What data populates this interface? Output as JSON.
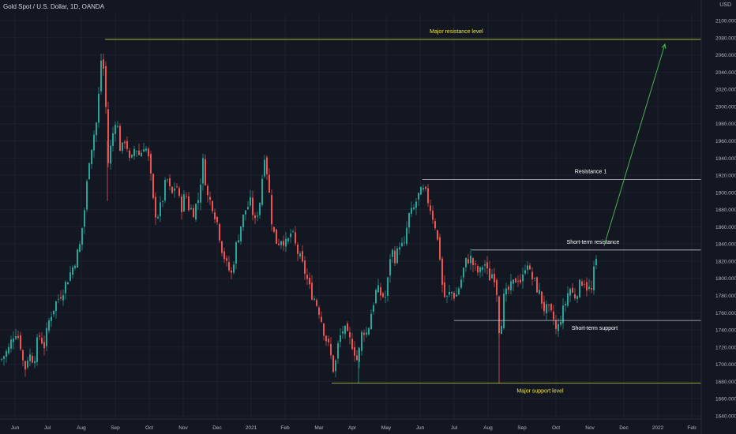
{
  "header": {
    "symbol": "Gold Spot / U.S. Dollar, 1D, OANDA",
    "currency": "USD"
  },
  "colors": {
    "background": "#131722",
    "up": "#26a69a",
    "down": "#ef5350",
    "major_level": "#c8e63c",
    "minor_level": "#d1d4dc",
    "arrow": "#4caf50",
    "major_text": "#f0e442",
    "minor_text": "#ffffff"
  },
  "chart_data": {
    "type": "candlestick",
    "title": "Gold Spot / U.S. Dollar, 1D, OANDA",
    "ylabel": "USD",
    "ylim": [
      1630,
      2120
    ],
    "y_ticks": [
      1640,
      1660,
      1680,
      1700,
      1720,
      1740,
      1760,
      1780,
      1800,
      1820,
      1840,
      1860,
      1880,
      1900,
      1920,
      1940,
      1960,
      1980,
      2000,
      2020,
      2040,
      2060,
      2080,
      2100
    ],
    "x_ticks": [
      "Jun",
      "Jul",
      "Aug",
      "Sep",
      "Oct",
      "Nov",
      "Dec",
      "2021",
      "Feb",
      "Mar",
      "Apr",
      "May",
      "Jun",
      "Jul",
      "Aug",
      "Sep",
      "Oct",
      "Nov",
      "Dec",
      "2022",
      "Feb"
    ],
    "x_tick_index": [
      19,
      60,
      103,
      146,
      189,
      232,
      275,
      318,
      361,
      404,
      446,
      489,
      532,
      575,
      618,
      661,
      704,
      747,
      790,
      833,
      876
    ],
    "bar_spacing": 1.007,
    "first_bar_x_offset": 0,
    "close_path": [
      [
        0,
        1705
      ],
      [
        10,
        1718
      ],
      [
        18,
        1740
      ],
      [
        24,
        1728
      ],
      [
        30,
        1692
      ],
      [
        35,
        1712
      ],
      [
        42,
        1705
      ],
      [
        48,
        1735
      ],
      [
        55,
        1722
      ],
      [
        62,
        1755
      ],
      [
        70,
        1772
      ],
      [
        78,
        1785
      ],
      [
        85,
        1800
      ],
      [
        92,
        1815
      ],
      [
        100,
        1838
      ],
      [
        106,
        1880
      ],
      [
        112,
        1940
      ],
      [
        118,
        1968
      ],
      [
        122,
        1985
      ],
      [
        126,
        2040
      ],
      [
        128,
        2068
      ],
      [
        132,
        2020
      ],
      [
        136,
        1935
      ],
      [
        140,
        1958
      ],
      [
        146,
        1990
      ],
      [
        152,
        1945
      ],
      [
        158,
        1965
      ],
      [
        164,
        1930
      ],
      [
        170,
        1955
      ],
      [
        176,
        1942
      ],
      [
        182,
        1958
      ],
      [
        188,
        1935
      ],
      [
        194,
        1880
      ],
      [
        198,
        1872
      ],
      [
        204,
        1888
      ],
      [
        210,
        1918
      ],
      [
        216,
        1895
      ],
      [
        222,
        1912
      ],
      [
        228,
        1880
      ],
      [
        234,
        1900
      ],
      [
        238,
        1883
      ],
      [
        244,
        1878
      ],
      [
        250,
        1892
      ],
      [
        256,
        1935
      ],
      [
        262,
        1895
      ],
      [
        268,
        1885
      ],
      [
        274,
        1865
      ],
      [
        280,
        1835
      ],
      [
        286,
        1815
      ],
      [
        292,
        1805
      ],
      [
        298,
        1838
      ],
      [
        304,
        1862
      ],
      [
        310,
        1880
      ],
      [
        316,
        1888
      ],
      [
        322,
        1865
      ],
      [
        328,
        1890
      ],
      [
        334,
        1945
      ],
      [
        338,
        1918
      ],
      [
        344,
        1858
      ],
      [
        350,
        1840
      ],
      [
        356,
        1848
      ],
      [
        362,
        1838
      ],
      [
        368,
        1855
      ],
      [
        374,
        1835
      ],
      [
        380,
        1820
      ],
      [
        386,
        1805
      ],
      [
        392,
        1785
      ],
      [
        398,
        1775
      ],
      [
        404,
        1760
      ],
      [
        410,
        1735
      ],
      [
        416,
        1718
      ],
      [
        422,
        1690
      ],
      [
        428,
        1728
      ],
      [
        434,
        1742
      ],
      [
        440,
        1730
      ],
      [
        446,
        1722
      ],
      [
        452,
        1702
      ],
      [
        458,
        1742
      ],
      [
        464,
        1735
      ],
      [
        470,
        1765
      ],
      [
        476,
        1788
      ],
      [
        482,
        1780
      ],
      [
        488,
        1778
      ],
      [
        494,
        1835
      ],
      [
        500,
        1822
      ],
      [
        506,
        1845
      ],
      [
        510,
        1830
      ],
      [
        516,
        1872
      ],
      [
        522,
        1878
      ],
      [
        528,
        1895
      ],
      [
        534,
        1902
      ],
      [
        538,
        1898
      ],
      [
        542,
        1888
      ],
      [
        546,
        1875
      ],
      [
        550,
        1862
      ],
      [
        556,
        1825
      ],
      [
        560,
        1782
      ],
      [
        564,
        1775
      ],
      [
        570,
        1785
      ],
      [
        576,
        1778
      ],
      [
        582,
        1795
      ],
      [
        588,
        1818
      ],
      [
        594,
        1825
      ],
      [
        600,
        1812
      ],
      [
        606,
        1805
      ],
      [
        612,
        1820
      ],
      [
        618,
        1800
      ],
      [
        624,
        1808
      ],
      [
        628,
        1785
      ],
      [
        632,
        1728
      ],
      [
        636,
        1775
      ],
      [
        642,
        1785
      ],
      [
        648,
        1792
      ],
      [
        654,
        1802
      ],
      [
        660,
        1795
      ],
      [
        666,
        1825
      ],
      [
        670,
        1805
      ],
      [
        676,
        1795
      ],
      [
        682,
        1782
      ],
      [
        688,
        1765
      ],
      [
        694,
        1762
      ],
      [
        700,
        1752
      ],
      [
        704,
        1735
      ],
      [
        708,
        1752
      ],
      [
        714,
        1768
      ],
      [
        720,
        1790
      ],
      [
        726,
        1778
      ],
      [
        732,
        1790
      ],
      [
        738,
        1800
      ],
      [
        742,
        1790
      ],
      [
        748,
        1785
      ],
      [
        752,
        1815
      ],
      [
        756,
        1825
      ]
    ],
    "levels": [
      {
        "name": "Major resistance level",
        "price": 2078,
        "x_start": 133,
        "style": "major"
      },
      {
        "name": "Resistance 1",
        "price": 1915,
        "x_start": 535,
        "style": "minor"
      },
      {
        "name": "Short-term resistance",
        "price": 1833,
        "x_start": 597,
        "style": "minor"
      },
      {
        "name": "Short-term support",
        "price": 1751,
        "x_start": 575,
        "style": "minor"
      },
      {
        "name": "Major support level",
        "price": 1678,
        "x_start": 420,
        "style": "major"
      }
    ],
    "arrow": {
      "from": [
        765,
        1838
      ],
      "to": [
        842,
        2078
      ]
    }
  }
}
